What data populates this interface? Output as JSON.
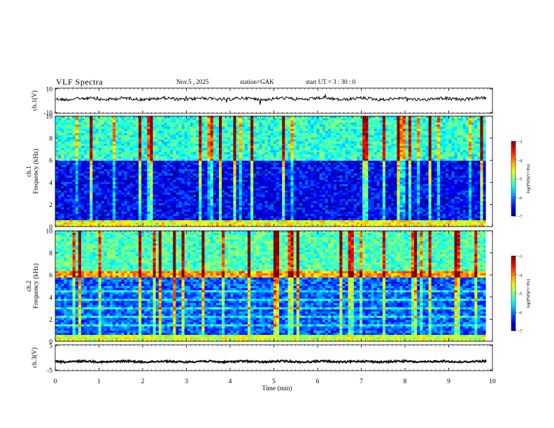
{
  "header": {
    "title": "VLF  Spectra",
    "date": "Nov.5   , 2025",
    "station": "station=GAK",
    "start_ut": "start  UT  =   3  : 30 : 0"
  },
  "chart_data": [
    {
      "type": "line",
      "panel": "ch1-waveform",
      "ylabel": "ch.1(V)",
      "y_ticks": [
        "10",
        "-10"
      ],
      "ylim": [
        -10,
        10
      ],
      "baseline_value": 1.5,
      "amplitude": 1.2
    },
    {
      "type": "heatmap",
      "panel": "ch1-spectrogram",
      "ylabel": "ch.1\nFrequency  (kHz)",
      "ylabel_lines": [
        "ch.1",
        "Frequency  (kHz)"
      ],
      "y_ticks": [
        "0",
        "2",
        "4",
        "6",
        "8",
        "10"
      ],
      "ylim": [
        0,
        10
      ],
      "colorbar": {
        "label": "log(PSD)(V²/Hz)",
        "ticks": [
          "-3",
          "-4",
          "-5",
          "-6",
          "-7"
        ],
        "range": [
          -7,
          -3
        ]
      }
    },
    {
      "type": "heatmap",
      "panel": "ch2-spectrogram",
      "ylabel": "ch.2\nFrequency  (kHz)",
      "ylabel_lines": [
        "ch.2",
        "Frequency  (kHz)"
      ],
      "y_ticks": [
        "0",
        "2",
        "4",
        "6",
        "8",
        "10"
      ],
      "ylim": [
        0,
        10
      ],
      "colorbar": {
        "label": "log(PSD)(V²/Hz)",
        "ticks": [
          "-3",
          "-4",
          "-5",
          "-6",
          "-7"
        ],
        "range": [
          -7,
          -3
        ]
      }
    },
    {
      "type": "line",
      "panel": "ch3-waveform",
      "ylabel": "ch.3(V)",
      "y_ticks": [
        "5",
        "-5"
      ],
      "ylim": [
        -5,
        5
      ],
      "baseline_value": -1.5,
      "amplitude": 0.25
    }
  ],
  "xaxis": {
    "label": "Time  (min)",
    "ticks": [
      "0",
      "1",
      "2",
      "3",
      "4",
      "5",
      "6",
      "7",
      "8",
      "9",
      "10"
    ],
    "xlim": [
      0,
      10
    ],
    "data_end": 9.85
  },
  "colors": {
    "frame": "#000000",
    "background": "#ffffff",
    "gap_row": "#ffffff"
  }
}
